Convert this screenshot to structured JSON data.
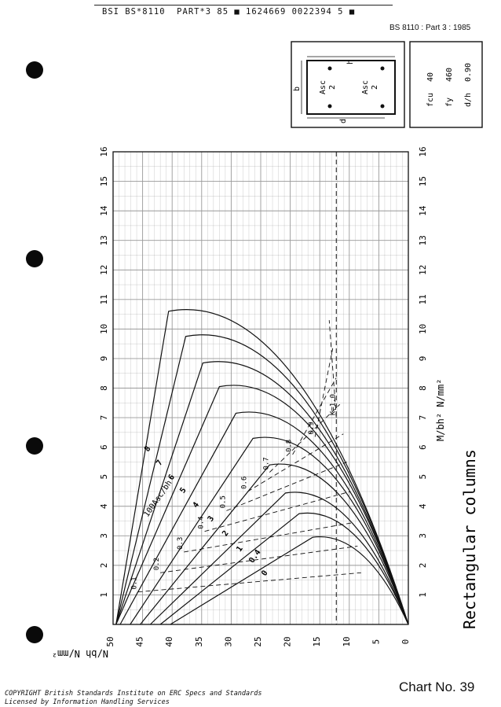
{
  "header": {
    "code_line": "BSI BS*8110  PART*3 85 ■ 1624669 0022394 5 ■",
    "standard_ref": "BS 8110 : Part 3 : 1985"
  },
  "section_diagram": {
    "label_h": "h",
    "label_b": "b",
    "label_d": "d",
    "steel_top": "Asc",
    "steel_bottom": "2"
  },
  "parameters": [
    {
      "symbol": "fcu",
      "value": "40"
    },
    {
      "symbol": "fy",
      "value": "460"
    },
    {
      "symbol": "d/h",
      "value": "0.90"
    }
  ],
  "chart_title": "Rectangular columns",
  "chart_number": "Chart No. 39",
  "copyright": [
    "COPYRIGHT British Standards Institute on ERC Specs and Standards",
    "Licensed by Information Handling Services"
  ],
  "chart_data": {
    "type": "line",
    "title": "Rectangular columns",
    "xlabel": "M/bh²  N/mm²",
    "ylabel": "N/bh  N/mm²",
    "xlim": [
      0,
      16
    ],
    "ylim": [
      0,
      50
    ],
    "x_ticks": [
      "1",
      "2",
      "3",
      "4",
      "5",
      "6",
      "7",
      "8",
      "9",
      "10",
      "11",
      "12",
      "13",
      "14",
      "15",
      "16"
    ],
    "y_ticks": [
      "0",
      "5",
      "10",
      "15",
      "20",
      "25",
      "30",
      "35",
      "40",
      "45",
      "50"
    ],
    "family_label": "100Asc/bh",
    "series": [
      {
        "name": "0",
        "peak_x": 2.95,
        "peak_y": 16.2
      },
      {
        "name": "0.4",
        "peak_x": 3.75,
        "peak_y": 18.5
      },
      {
        "name": "1",
        "peak_x": 4.45,
        "peak_y": 20.8
      },
      {
        "name": "2",
        "peak_x": 5.4,
        "peak_y": 23.5
      },
      {
        "name": "3",
        "peak_x": 6.3,
        "peak_y": 26.3
      },
      {
        "name": "4",
        "peak_x": 7.15,
        "peak_y": 29.2
      },
      {
        "name": "5",
        "peak_x": 8.05,
        "peak_y": 32.0
      },
      {
        "name": "6",
        "peak_x": 8.85,
        "peak_y": 34.8
      },
      {
        "name": "7",
        "peak_x": 9.75,
        "peak_y": 37.7
      },
      {
        "name": "8",
        "peak_x": 10.6,
        "peak_y": 40.6
      }
    ],
    "k_lines": [
      {
        "label": "0.1",
        "x": 1.1,
        "y": 45.8
      },
      {
        "label": "0.2",
        "x": 1.75,
        "y": 42.0
      },
      {
        "label": "0.3",
        "x": 2.45,
        "y": 38.0
      },
      {
        "label": "0.4",
        "x": 3.15,
        "y": 34.5
      },
      {
        "label": "0.5",
        "x": 3.85,
        "y": 30.8
      },
      {
        "label": "0.6",
        "x": 4.5,
        "y": 27.2
      },
      {
        "label": "0.7",
        "x": 5.15,
        "y": 23.5
      },
      {
        "label": "0.8",
        "x": 5.75,
        "y": 19.6
      },
      {
        "label": "0.9",
        "x": 6.35,
        "y": 15.8
      },
      {
        "label": "K=1.0",
        "x": 7.0,
        "y": 12.2
      }
    ]
  }
}
